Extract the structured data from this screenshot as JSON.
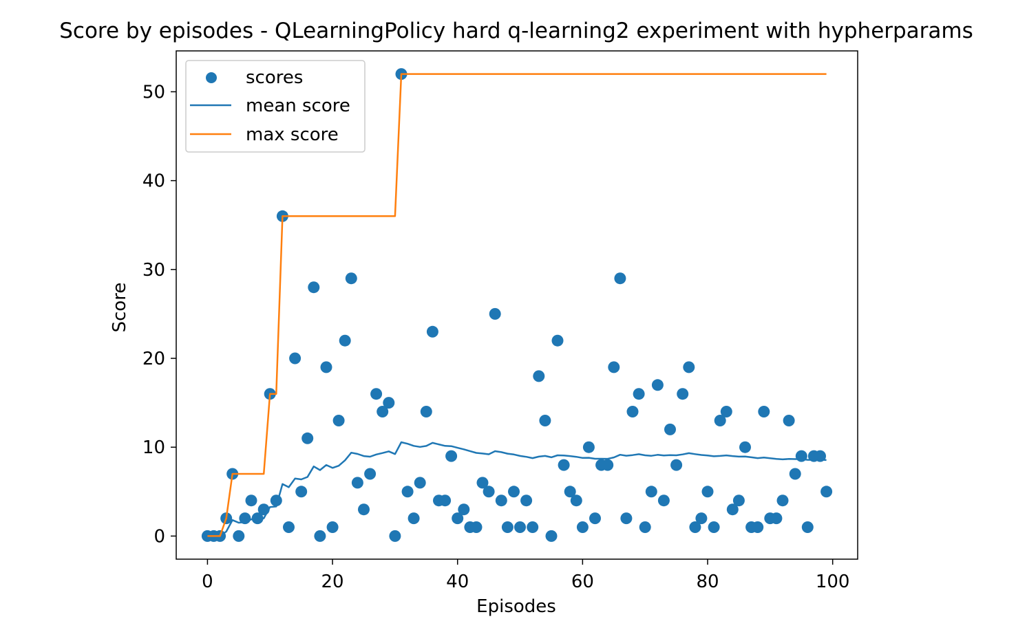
{
  "colors": {
    "scores": "#1f77b4",
    "mean": "#1f77b4",
    "max": "#ff7f0e",
    "axes": "#000000",
    "background": "#ffffff"
  },
  "chart_data": {
    "type": "scatter",
    "title": "Score by episodes - QLearningPolicy hard q-learning2 experiment with hypherparams",
    "xlabel": "Episodes",
    "ylabel": "Score",
    "xlim": [
      -5,
      104
    ],
    "ylim": [
      -2.6,
      54.6
    ],
    "xticks": [
      0,
      20,
      40,
      60,
      80,
      100
    ],
    "yticks": [
      0,
      10,
      20,
      30,
      40,
      50
    ],
    "grid": false,
    "legend_position": "upper left",
    "series": [
      {
        "name": "scores",
        "kind": "scatter",
        "x": [
          0,
          1,
          2,
          3,
          4,
          5,
          6,
          7,
          8,
          9,
          10,
          11,
          12,
          13,
          14,
          15,
          16,
          17,
          18,
          19,
          20,
          21,
          22,
          23,
          24,
          25,
          26,
          27,
          28,
          29,
          30,
          31,
          32,
          33,
          34,
          35,
          36,
          37,
          38,
          39,
          40,
          41,
          42,
          43,
          44,
          45,
          46,
          47,
          48,
          49,
          50,
          51,
          52,
          53,
          54,
          55,
          56,
          57,
          58,
          59,
          60,
          61,
          62,
          63,
          64,
          65,
          66,
          67,
          68,
          69,
          70,
          71,
          72,
          73,
          74,
          75,
          76,
          77,
          78,
          79,
          80,
          81,
          82,
          83,
          84,
          85,
          86,
          87,
          88,
          89,
          90,
          91,
          92,
          93,
          94,
          95,
          96,
          97,
          98,
          99
        ],
        "y": [
          0,
          0,
          0,
          2,
          7,
          0,
          2,
          4,
          2,
          3,
          16,
          4,
          36,
          1,
          20,
          5,
          11,
          28,
          0,
          19,
          1,
          13,
          22,
          29,
          6,
          3,
          7,
          16,
          14,
          15,
          0,
          52,
          5,
          2,
          6,
          14,
          23,
          4,
          4,
          9,
          2,
          3,
          1,
          1,
          6,
          5,
          25,
          4,
          1,
          5,
          1,
          4,
          1,
          18,
          13,
          0,
          22,
          8,
          5,
          4,
          1,
          10,
          2,
          8,
          8,
          19,
          29,
          2,
          14,
          16,
          1,
          5,
          17,
          4,
          12,
          8,
          16,
          19,
          1,
          2,
          5,
          1,
          13,
          14,
          3,
          4,
          10,
          1,
          1,
          14,
          2,
          2,
          4,
          13,
          7,
          9,
          1,
          9,
          9,
          5
        ]
      },
      {
        "name": "mean score",
        "kind": "line",
        "x": [
          0,
          1,
          2,
          3,
          4,
          5,
          6,
          7,
          8,
          9,
          10,
          11,
          12,
          13,
          14,
          15,
          16,
          17,
          18,
          19,
          20,
          21,
          22,
          23,
          24,
          25,
          26,
          27,
          28,
          29,
          30,
          31,
          32,
          33,
          34,
          35,
          36,
          37,
          38,
          39,
          40,
          41,
          42,
          43,
          44,
          45,
          46,
          47,
          48,
          49,
          50,
          51,
          52,
          53,
          54,
          55,
          56,
          57,
          58,
          59,
          60,
          61,
          62,
          63,
          64,
          65,
          66,
          67,
          68,
          69,
          70,
          71,
          72,
          73,
          74,
          75,
          76,
          77,
          78,
          79,
          80,
          81,
          82,
          83,
          84,
          85,
          86,
          87,
          88,
          89,
          90,
          91,
          92,
          93,
          94,
          95,
          96,
          97,
          98,
          99
        ],
        "y": [
          0.0,
          0.0,
          0.0,
          0.5,
          1.8,
          1.5,
          1.57,
          1.88,
          1.89,
          2.0,
          3.27,
          3.33,
          5.85,
          5.5,
          6.47,
          6.38,
          6.65,
          7.83,
          7.42,
          8.0,
          7.67,
          7.91,
          8.52,
          9.38,
          9.24,
          9.0,
          8.93,
          9.18,
          9.34,
          9.53,
          9.23,
          10.56,
          10.39,
          10.15,
          10.03,
          10.14,
          10.49,
          10.32,
          10.15,
          10.12,
          9.93,
          9.76,
          9.56,
          9.36,
          9.29,
          9.2,
          9.55,
          9.44,
          9.27,
          9.18,
          9.02,
          8.92,
          8.77,
          8.94,
          9.02,
          8.86,
          9.09,
          9.07,
          9.0,
          8.92,
          8.79,
          8.81,
          8.7,
          8.7,
          8.69,
          8.85,
          9.15,
          9.04,
          9.11,
          9.21,
          9.09,
          9.03,
          9.14,
          9.07,
          9.11,
          9.09,
          9.19,
          9.33,
          9.22,
          9.13,
          9.07,
          8.98,
          9.02,
          9.08,
          9.0,
          8.94,
          8.95,
          8.86,
          8.77,
          8.83,
          8.76,
          8.68,
          8.63,
          8.68,
          8.66,
          8.66,
          8.58,
          8.58,
          8.59,
          8.55
        ]
      },
      {
        "name": "max score",
        "kind": "line",
        "x": [
          0,
          1,
          2,
          3,
          4,
          5,
          6,
          7,
          8,
          9,
          10,
          11,
          12,
          13,
          14,
          15,
          16,
          17,
          18,
          19,
          20,
          21,
          22,
          23,
          24,
          25,
          26,
          27,
          28,
          29,
          30,
          31,
          32,
          33,
          34,
          35,
          36,
          37,
          38,
          39,
          40,
          41,
          42,
          43,
          44,
          45,
          46,
          47,
          48,
          49,
          50,
          51,
          52,
          53,
          54,
          55,
          56,
          57,
          58,
          59,
          60,
          61,
          62,
          63,
          64,
          65,
          66,
          67,
          68,
          69,
          70,
          71,
          72,
          73,
          74,
          75,
          76,
          77,
          78,
          79,
          80,
          81,
          82,
          83,
          84,
          85,
          86,
          87,
          88,
          89,
          90,
          91,
          92,
          93,
          94,
          95,
          96,
          97,
          98,
          99
        ],
        "y": [
          0,
          0,
          0,
          2,
          7,
          7,
          7,
          7,
          7,
          7,
          16,
          16,
          36,
          36,
          36,
          36,
          36,
          36,
          36,
          36,
          36,
          36,
          36,
          36,
          36,
          36,
          36,
          36,
          36,
          36,
          36,
          52,
          52,
          52,
          52,
          52,
          52,
          52,
          52,
          52,
          52,
          52,
          52,
          52,
          52,
          52,
          52,
          52,
          52,
          52,
          52,
          52,
          52,
          52,
          52,
          52,
          52,
          52,
          52,
          52,
          52,
          52,
          52,
          52,
          52,
          52,
          52,
          52,
          52,
          52,
          52,
          52,
          52,
          52,
          52,
          52,
          52,
          52,
          52,
          52,
          52,
          52,
          52,
          52,
          52,
          52,
          52,
          52,
          52,
          52,
          52,
          52,
          52,
          52,
          52,
          52,
          52,
          52,
          52,
          52
        ]
      }
    ]
  }
}
